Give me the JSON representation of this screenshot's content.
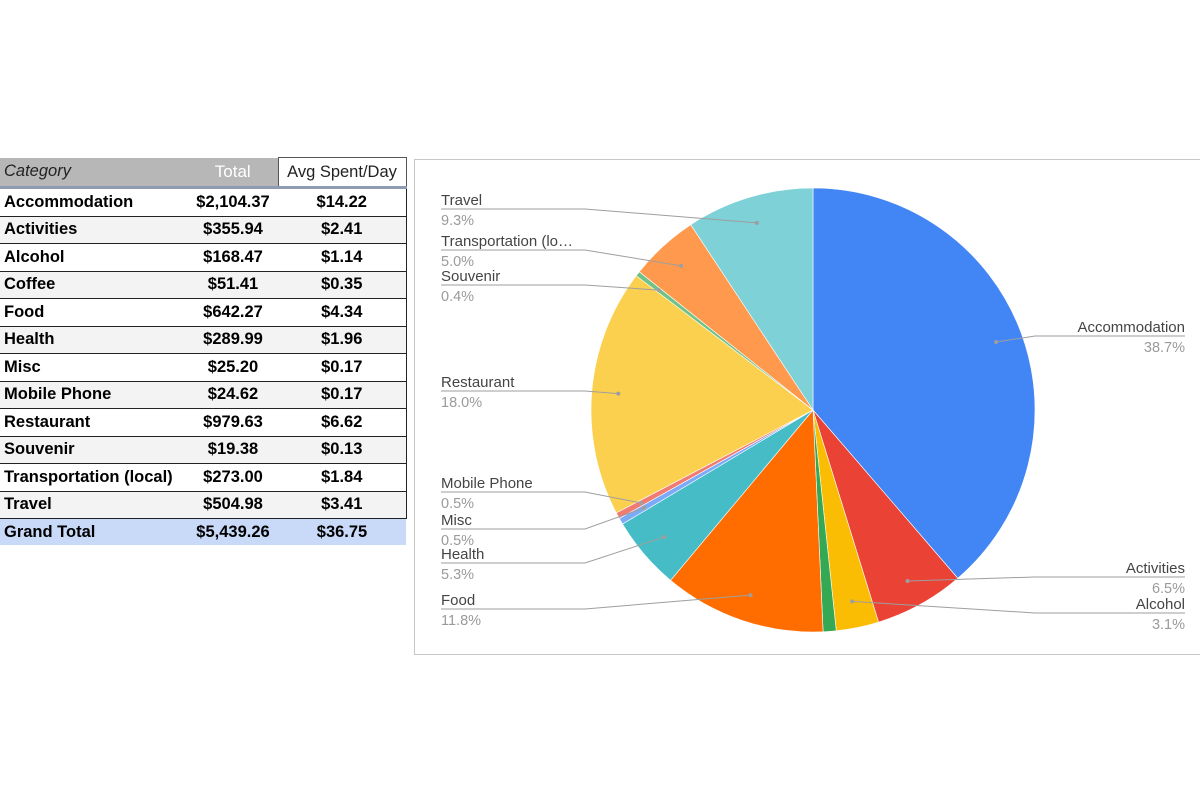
{
  "table": {
    "headers": {
      "category": "Category",
      "total": "Total",
      "avg": "Avg Spent/Day"
    },
    "rows": [
      {
        "category": "Accommodation",
        "total": "$2,104.37",
        "avg": "$14.22"
      },
      {
        "category": "Activities",
        "total": "$355.94",
        "avg": "$2.41"
      },
      {
        "category": "Alcohol",
        "total": "$168.47",
        "avg": "$1.14"
      },
      {
        "category": "Coffee",
        "total": "$51.41",
        "avg": "$0.35"
      },
      {
        "category": "Food",
        "total": "$642.27",
        "avg": "$4.34"
      },
      {
        "category": "Health",
        "total": "$289.99",
        "avg": "$1.96"
      },
      {
        "category": "Misc",
        "total": "$25.20",
        "avg": "$0.17"
      },
      {
        "category": "Mobile Phone",
        "total": "$24.62",
        "avg": "$0.17"
      },
      {
        "category": "Restaurant",
        "total": "$979.63",
        "avg": "$6.62"
      },
      {
        "category": "Souvenir",
        "total": "$19.38",
        "avg": "$0.13"
      },
      {
        "category": "Transportation (local)",
        "total": "$273.00",
        "avg": "$1.84"
      },
      {
        "category": "Travel",
        "total": "$504.98",
        "avg": "$3.41"
      }
    ],
    "footer": {
      "category": "Grand Total",
      "total": "$5,439.26",
      "avg": "$36.75"
    }
  },
  "chart_data": {
    "type": "pie",
    "title": "",
    "start": "top",
    "direction": "clockwise",
    "slices": [
      {
        "label": "Accommodation",
        "percent_label": "38.7%",
        "value": 2104.37,
        "color": "#4285f4"
      },
      {
        "label": "Activities",
        "percent_label": "6.5%",
        "value": 355.94,
        "color": "#ea4335"
      },
      {
        "label": "Alcohol",
        "percent_label": "3.1%",
        "value": 168.47,
        "color": "#fbbc04"
      },
      {
        "label": "Coffee",
        "percent_label": "",
        "value": 51.41,
        "color": "#34a853"
      },
      {
        "label": "Food",
        "percent_label": "11.8%",
        "value": 642.27,
        "color": "#ff6d01"
      },
      {
        "label": "Health",
        "percent_label": "5.3%",
        "value": 289.99,
        "color": "#46bdc6"
      },
      {
        "label": "Misc",
        "percent_label": "0.5%",
        "value": 25.2,
        "color": "#7baaf7"
      },
      {
        "label": "Mobile Phone",
        "percent_label": "0.5%",
        "value": 24.62,
        "color": "#f07b72"
      },
      {
        "label": "Restaurant",
        "percent_label": "18.0%",
        "value": 979.63,
        "color": "#fcd04f"
      },
      {
        "label": "Souvenir",
        "percent_label": "0.4%",
        "value": 19.38,
        "color": "#71c287"
      },
      {
        "label": "Transportation (lo…",
        "percent_label": "5.0%",
        "value": 273.0,
        "color": "#ff994d"
      },
      {
        "label": "Travel",
        "percent_label": "9.3%",
        "value": 504.98,
        "color": "#7ed1d7"
      }
    ]
  }
}
